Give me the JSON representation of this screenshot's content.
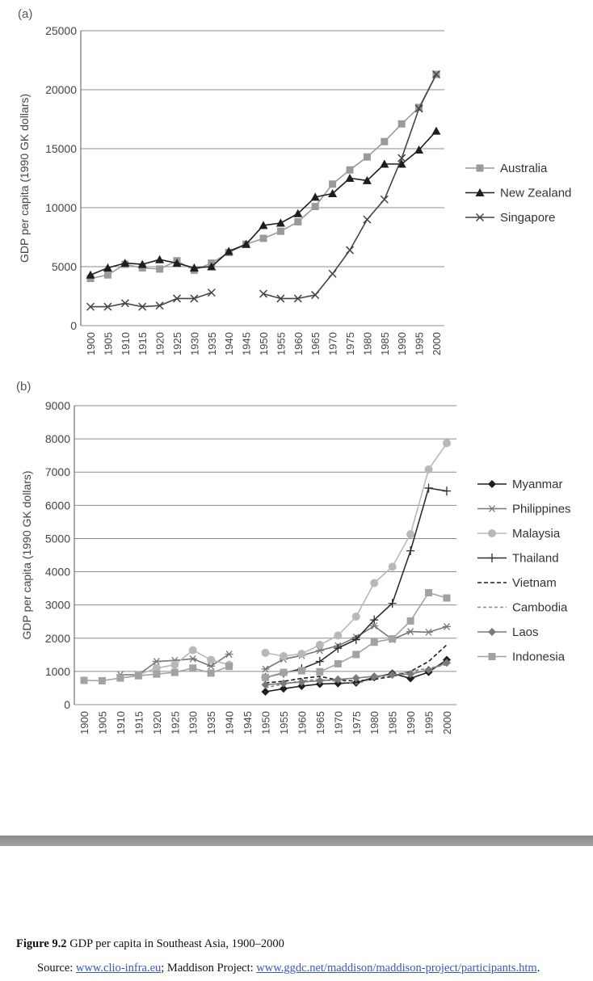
{
  "chart_data": [
    {
      "panel_label": "(a)",
      "type": "line",
      "ylabel": "GDP per capita (1990 GK dollars)",
      "ylim": [
        0,
        25000
      ],
      "yticks": [
        0,
        5000,
        10000,
        15000,
        20000,
        25000
      ],
      "x": [
        1900,
        1905,
        1910,
        1915,
        1920,
        1925,
        1930,
        1935,
        1940,
        1945,
        1950,
        1955,
        1960,
        1965,
        1970,
        1975,
        1980,
        1985,
        1990,
        1995,
        2000
      ],
      "legend_position": "right",
      "grid": true,
      "series": [
        {
          "name": "Australia",
          "color": "#9a9a9a",
          "marker": "square",
          "dash": "",
          "values": [
            4000,
            4300,
            5200,
            4900,
            4800,
            5500,
            4700,
            5300,
            6200,
            6900,
            7400,
            8000,
            8800,
            10100,
            12000,
            13200,
            14300,
            15600,
            17100,
            18500,
            21300
          ]
        },
        {
          "name": "New Zealand",
          "color": "#1e1e1e",
          "marker": "triangle",
          "dash": "",
          "values": [
            4300,
            4900,
            5300,
            5200,
            5600,
            5300,
            4900,
            5000,
            6300,
            6900,
            8500,
            8700,
            9500,
            10900,
            11200,
            12500,
            12300,
            13700,
            13700,
            14900,
            16500
          ]
        },
        {
          "name": "Singapore",
          "color": "#444444",
          "marker": "x",
          "dash": "",
          "values": [
            1600,
            1600,
            1900,
            1600,
            1700,
            2300,
            2300,
            2800,
            null,
            null,
            2700,
            2300,
            2300,
            2600,
            4400,
            6400,
            9000,
            10700,
            14200,
            18400,
            21300
          ]
        }
      ]
    },
    {
      "panel_label": "(b)",
      "type": "line",
      "ylabel": "GDP per capita (1990 GK dollars)",
      "ylim": [
        0,
        9000
      ],
      "yticks": [
        0,
        1000,
        2000,
        3000,
        4000,
        5000,
        6000,
        7000,
        8000,
        9000
      ],
      "x": [
        1900,
        1905,
        1910,
        1915,
        1920,
        1925,
        1930,
        1935,
        1940,
        1945,
        1950,
        1955,
        1960,
        1965,
        1970,
        1975,
        1980,
        1985,
        1990,
        1995,
        2000
      ],
      "legend_position": "right",
      "grid": true,
      "series": [
        {
          "name": "Myanmar",
          "color": "#1e1e1e",
          "marker": "diamond",
          "dash": "",
          "values": [
            null,
            null,
            null,
            null,
            null,
            null,
            null,
            null,
            null,
            null,
            390,
            480,
            560,
            620,
            640,
            660,
            820,
            940,
            790,
            980,
            1350
          ]
        },
        {
          "name": "Philippines",
          "color": "#777777",
          "marker": "star",
          "dash": "",
          "values": [
            null,
            null,
            900,
            900,
            1300,
            1330,
            1380,
            1160,
            1520,
            null,
            1070,
            1370,
            1480,
            1630,
            1770,
            2030,
            2370,
            1960,
            2200,
            2180,
            2350
          ]
        },
        {
          "name": "Malaysia",
          "color": "#b8b8b8",
          "marker": "circle",
          "dash": "",
          "values": [
            null,
            null,
            null,
            900,
            1100,
            1200,
            1640,
            1350,
            1200,
            null,
            1560,
            1460,
            1530,
            1800,
            2080,
            2650,
            3660,
            4150,
            5130,
            7080,
            7870
          ]
        },
        {
          "name": "Thailand",
          "color": "#2e2e2e",
          "marker": "plus",
          "dash": "",
          "values": [
            null,
            null,
            null,
            null,
            null,
            null,
            null,
            null,
            null,
            null,
            820,
            950,
            1080,
            1300,
            1700,
            1960,
            2550,
            3050,
            4630,
            6520,
            6430
          ]
        },
        {
          "name": "Vietnam",
          "color": "#1e1e1e",
          "marker": "none",
          "dash": "5,3",
          "values": [
            null,
            null,
            null,
            null,
            null,
            null,
            null,
            null,
            null,
            null,
            660,
            700,
            790,
            850,
            740,
            710,
            760,
            850,
            1000,
            1300,
            1800
          ]
        },
        {
          "name": "Cambodia",
          "color": "#888888",
          "marker": "none",
          "dash": "4,3",
          "values": [
            null,
            null,
            null,
            null,
            null,
            null,
            null,
            null,
            null,
            null,
            510,
            620,
            720,
            760,
            700,
            620,
            800,
            900,
            1000,
            1100,
            1200
          ]
        },
        {
          "name": "Laos",
          "color": "#7a7a7a",
          "marker": "diamond",
          "dash": "",
          "values": [
            null,
            null,
            null,
            null,
            null,
            null,
            null,
            null,
            null,
            null,
            600,
            640,
            680,
            720,
            760,
            800,
            850,
            900,
            920,
            1050,
            1260
          ]
        },
        {
          "name": "Indonesia",
          "color": "#a2a2a2",
          "marker": "square",
          "dash": "",
          "values": [
            730,
            720,
            800,
            870,
            920,
            970,
            1100,
            950,
            1150,
            null,
            820,
            970,
            1020,
            990,
            1230,
            1510,
            1880,
            1980,
            2520,
            3370,
            3210
          ]
        }
      ]
    }
  ],
  "caption": {
    "figure_label": "Figure 9.2",
    "text": " GDP per capita in Southeast Asia, 1900–2000"
  },
  "source": {
    "prefix": "Source: ",
    "link1": "www.clio-infra.eu",
    "middle": "; Maddison Project: ",
    "link2": "www.ggdc.net/maddison/maddison-project/participants.htm",
    "suffix": "."
  }
}
